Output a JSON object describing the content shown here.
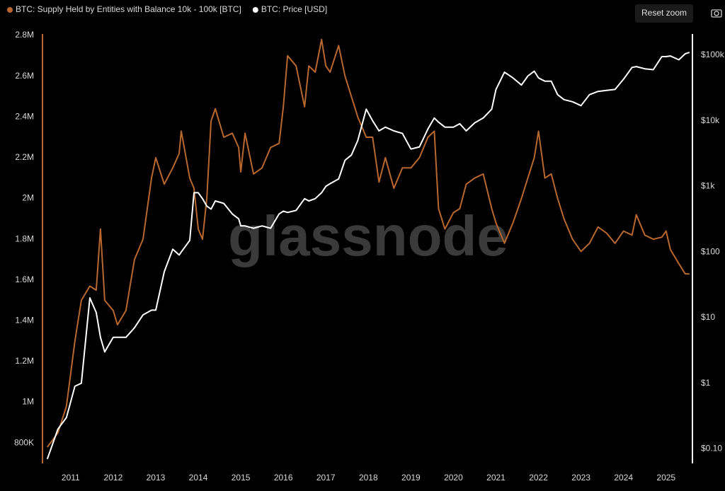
{
  "chart_data": {
    "type": "line",
    "x": [
      2010.45,
      2010.7,
      2010.9,
      2011.1,
      2011.25,
      2011.45,
      2011.6,
      2011.7,
      2011.8,
      2012.0,
      2012.1,
      2012.3,
      2012.5,
      2012.7,
      2012.9,
      2013.0,
      2013.2,
      2013.4,
      2013.55,
      2013.6,
      2013.8,
      2013.9,
      2014.0,
      2014.1,
      2014.2,
      2014.3,
      2014.4,
      2014.6,
      2014.8,
      2014.95,
      2015.0,
      2015.1,
      2015.3,
      2015.5,
      2015.7,
      2015.9,
      2016.0,
      2016.1,
      2016.3,
      2016.5,
      2016.6,
      2016.75,
      2016.9,
      2017.0,
      2017.1,
      2017.3,
      2017.45,
      2017.6,
      2017.75,
      2017.95,
      2018.1,
      2018.25,
      2018.4,
      2018.6,
      2018.8,
      2019.0,
      2019.2,
      2019.4,
      2019.55,
      2019.65,
      2019.8,
      2020.0,
      2020.15,
      2020.3,
      2020.5,
      2020.7,
      2020.9,
      2021.0,
      2021.2,
      2021.4,
      2021.6,
      2021.75,
      2021.9,
      2022.0,
      2022.15,
      2022.3,
      2022.45,
      2022.6,
      2022.8,
      2023.0,
      2023.2,
      2023.4,
      2023.6,
      2023.8,
      2024.0,
      2024.2,
      2024.3,
      2024.5,
      2024.7,
      2024.9,
      2025.0,
      2025.1,
      2025.3,
      2025.45,
      2025.55
    ],
    "series": [
      {
        "name": "BTC: Supply Held by Entities with Balance 10k - 100k [BTC]",
        "color": "#b8672e",
        "axis": "y",
        "values": [
          780000,
          850000,
          980000,
          1300000,
          1500000,
          1570000,
          1550000,
          1850000,
          1500000,
          1450000,
          1380000,
          1450000,
          1700000,
          1800000,
          2100000,
          2200000,
          2070000,
          2150000,
          2220000,
          2330000,
          2100000,
          2050000,
          1850000,
          1800000,
          2000000,
          2380000,
          2440000,
          2300000,
          2320000,
          2250000,
          2130000,
          2320000,
          2120000,
          2150000,
          2250000,
          2270000,
          2450000,
          2700000,
          2650000,
          2450000,
          2650000,
          2620000,
          2780000,
          2650000,
          2620000,
          2750000,
          2600000,
          2500000,
          2400000,
          2300000,
          2300000,
          2080000,
          2200000,
          2050000,
          2150000,
          2150000,
          2200000,
          2300000,
          2330000,
          1950000,
          1850000,
          1930000,
          1950000,
          2070000,
          2100000,
          2120000,
          1950000,
          1880000,
          1780000,
          1880000,
          2000000,
          2100000,
          2200000,
          2330000,
          2100000,
          2120000,
          2000000,
          1900000,
          1800000,
          1740000,
          1780000,
          1860000,
          1830000,
          1780000,
          1840000,
          1820000,
          1920000,
          1820000,
          1800000,
          1810000,
          1840000,
          1750000,
          1680000,
          1630000,
          1630000
        ]
      },
      {
        "name": "BTC: Price [USD]",
        "color": "#ffffff",
        "axis": "y2",
        "values": [
          0.07,
          0.2,
          0.3,
          0.9,
          1.0,
          20,
          12,
          5,
          3,
          5,
          5,
          5,
          7,
          11,
          13,
          13,
          50,
          110,
          90,
          100,
          150,
          800,
          800,
          650,
          500,
          450,
          600,
          550,
          380,
          320,
          250,
          250,
          230,
          250,
          230,
          380,
          420,
          400,
          430,
          650,
          600,
          650,
          800,
          1000,
          1100,
          1300,
          2500,
          3000,
          5000,
          15000,
          10000,
          7000,
          8000,
          7000,
          6400,
          3700,
          4000,
          7500,
          11000,
          9500,
          8000,
          8000,
          9000,
          7000,
          9300,
          11000,
          15000,
          30000,
          55000,
          45000,
          35000,
          48000,
          57000,
          45000,
          40000,
          40000,
          25000,
          21000,
          19500,
          17000,
          25000,
          28000,
          29000,
          30000,
          43000,
          65000,
          67000,
          62000,
          60000,
          95000,
          95000,
          97000,
          85000,
          105000,
          110000
        ]
      }
    ],
    "xlim": [
      2010.37,
      2025.57
    ],
    "xticks": [
      2011,
      2012,
      2013,
      2014,
      2015,
      2016,
      2017,
      2018,
      2019,
      2020,
      2021,
      2022,
      2023,
      2024,
      2025
    ],
    "ylim": [
      700000,
      2800000
    ],
    "yticks": [
      {
        "value": 800000,
        "label": "800K"
      },
      {
        "value": 1000000,
        "label": "1M"
      },
      {
        "value": 1200000,
        "label": "1.2M"
      },
      {
        "value": 1400000,
        "label": "1.4M"
      },
      {
        "value": 1600000,
        "label": "1.6M"
      },
      {
        "value": 1800000,
        "label": "1.8M"
      },
      {
        "value": 2000000,
        "label": "2M"
      },
      {
        "value": 2200000,
        "label": "2.2M"
      },
      {
        "value": 2400000,
        "label": "2.4M"
      },
      {
        "value": 2600000,
        "label": "2.6M"
      },
      {
        "value": 2800000,
        "label": "2.8M"
      }
    ],
    "y2lim": [
      0.06,
      200000
    ],
    "y2scale": "log",
    "y2ticks": [
      {
        "value": 0.1,
        "label": "$0.10"
      },
      {
        "value": 1,
        "label": "$1"
      },
      {
        "value": 10,
        "label": "$10"
      },
      {
        "value": 100,
        "label": "$100"
      },
      {
        "value": 1000,
        "label": "$1k"
      },
      {
        "value": 10000,
        "label": "$10k"
      },
      {
        "value": 100000,
        "label": "$100k"
      }
    ],
    "grid": false,
    "legend": "top-left",
    "watermark": "glassnode",
    "reset_zoom": "Reset zoom"
  }
}
